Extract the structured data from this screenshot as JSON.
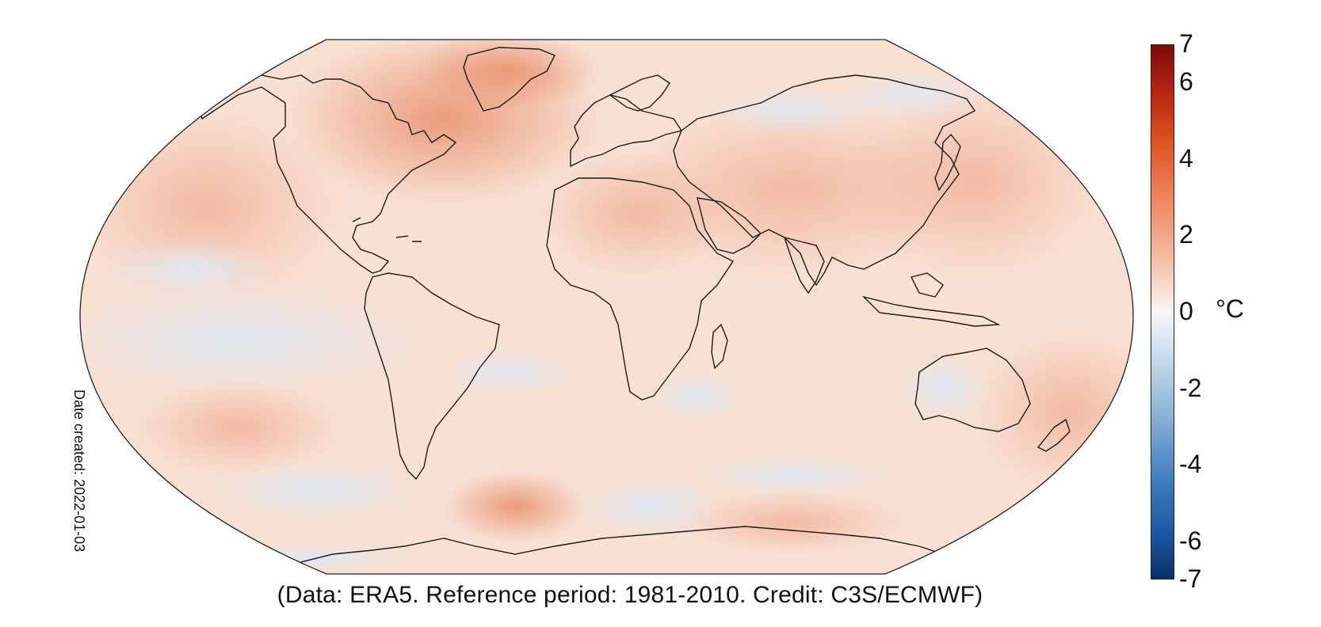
{
  "map": {
    "projection_label": "",
    "credit": "(Data: ERA5.  Reference period: 1981-2010.  Credit: C3S/ECMWF)",
    "date_created": "Date created: 2022-01-03"
  },
  "colorbar": {
    "unit": "°C",
    "min": -7,
    "max": 7,
    "ticks": [
      "7",
      "6",
      "4",
      "2",
      "0",
      "-2",
      "-4",
      "-6",
      "-7"
    ],
    "tick_values": [
      7,
      6,
      4,
      2,
      0,
      -2,
      -4,
      -6,
      -7
    ],
    "colors": {
      "top": "#8b0d0d",
      "upper": "#e0521f",
      "mid_warm": "#f4a582",
      "zero": "#f7f7f7",
      "mid_cool": "#92c5de",
      "lower": "#2166ac",
      "bottom": "#0b2f66"
    }
  },
  "map_colors": {
    "ocean_background": "#f9e4d8",
    "warm_anomaly": "#eeb59c",
    "strong_warm": "#e59a79",
    "cool_anomaly": "#e4ecf4",
    "coastline": "#1b1b1b"
  }
}
